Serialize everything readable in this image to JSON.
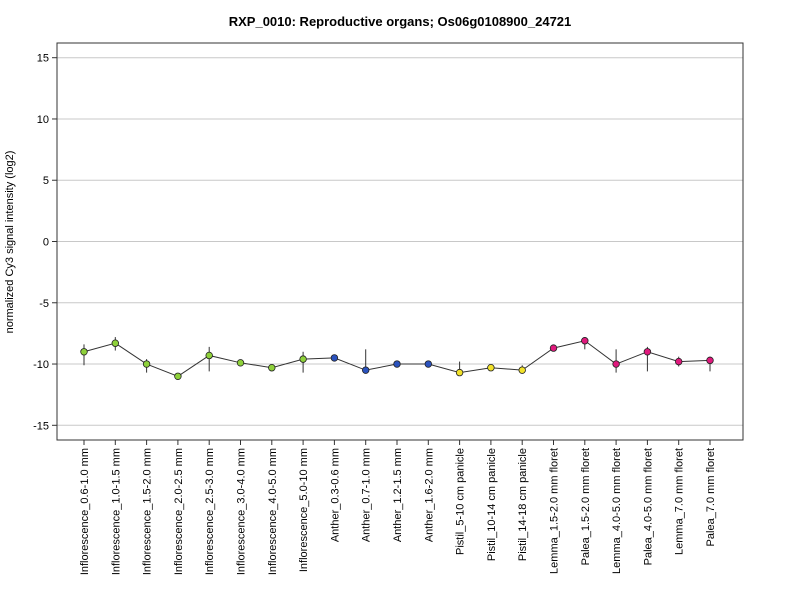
{
  "chart_data": {
    "type": "scatter",
    "title": "RXP_0010: Reproductive organs; Os06g0108900_24721",
    "xlabel": "",
    "ylabel": "normalized Cy3 signal intensity (log2)",
    "ylim": [
      -16.2,
      16.2
    ],
    "yticks": [
      -15,
      -10,
      -5,
      0,
      5,
      10,
      15
    ],
    "grid": "horizontal",
    "line_color": "#333333",
    "error_color": "#333333",
    "categories": [
      "Inflorescence_0.6-1.0 mm",
      "Inflorescence_1.0-1.5 mm",
      "Inflorescence_1.5-2.0 mm",
      "Inflorescence_2.0-2.5 mm",
      "Inflorescence_2.5-3.0 mm",
      "Inflorescence_3.0-4.0 mm",
      "Inflorescence_4.0-5.0 mm",
      "Inflorescence_5.0-10 mm",
      "Anther_0.3-0.6 mm",
      "Anther_0.7-1.0 mm",
      "Anther_1.2-1.5 mm",
      "Anther_1.6-2.0 mm",
      "Pistil_5-10 cm panicle",
      "Pistil_10-14 cm panicle",
      "Pistil_14-18 cm panicle",
      "Lemma_1.5-2.0 mm floret",
      "Palea_1.5-2.0 mm floret",
      "Lemma_4.0-5.0 mm floret",
      "Palea_4.0-5.0 mm floret",
      "Lemma_7.0 mm floret",
      "Palea_7.0 mm floret"
    ],
    "values": [
      -9.0,
      -8.3,
      -10.0,
      -11.0,
      -9.3,
      -9.9,
      -10.3,
      -9.6,
      -9.5,
      -10.5,
      -10.0,
      -10.0,
      -10.7,
      -10.3,
      -10.5,
      -8.7,
      -8.1,
      -10.0,
      -9.0,
      -9.8,
      -9.7
    ],
    "error_low": [
      -10.1,
      -8.9,
      -10.7,
      -11.1,
      -10.6,
      -10.0,
      -10.6,
      -10.7,
      -9.6,
      -10.7,
      -10.1,
      -10.1,
      -10.9,
      -10.4,
      -10.7,
      -8.8,
      -8.8,
      -10.7,
      -10.6,
      -10.2,
      -10.6
    ],
    "error_high": [
      -8.4,
      -7.8,
      -9.6,
      -10.9,
      -8.6,
      -9.8,
      -10.0,
      -9.0,
      -9.3,
      -8.8,
      -9.8,
      -9.9,
      -9.8,
      -10.1,
      -10.1,
      -8.5,
      -7.8,
      -8.8,
      -8.6,
      -9.4,
      -9.4
    ],
    "colors": [
      "#8ed13a",
      "#8ed13a",
      "#8ed13a",
      "#8ed13a",
      "#8ed13a",
      "#8ed13a",
      "#8ed13a",
      "#8ed13a",
      "#2a52be",
      "#2a52be",
      "#2a52be",
      "#2a52be",
      "#f2e22a",
      "#f2e22a",
      "#f2e22a",
      "#e0197d",
      "#e0197d",
      "#e0197d",
      "#e0197d",
      "#e0197d",
      "#e0197d"
    ]
  }
}
